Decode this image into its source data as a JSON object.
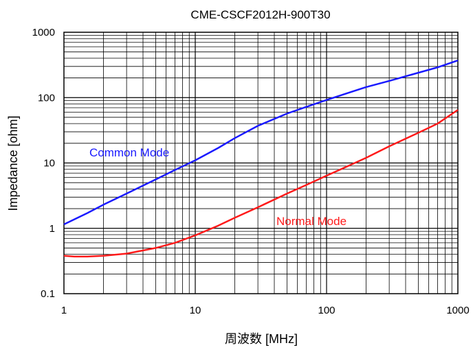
{
  "chart_data": {
    "type": "line",
    "title": "CME-CSCF2012H-900T30",
    "xlabel": "周波数 [MHz]",
    "ylabel": "Impedance [ohm]",
    "x_scale": "log",
    "y_scale": "log",
    "xlim": [
      1,
      1000
    ],
    "ylim": [
      0.1,
      1000
    ],
    "grid": true,
    "x_ticks": [
      "1",
      "10",
      "100",
      "1000"
    ],
    "y_ticks": [
      "1000",
      "100",
      "10",
      "1",
      "0.1"
    ],
    "series": [
      {
        "name": "Common Mode",
        "color": "#1a1aff",
        "x": [
          1,
          1.5,
          2,
          3,
          5,
          7,
          10,
          15,
          20,
          30,
          50,
          70,
          100,
          150,
          200,
          300,
          500,
          700,
          1000
        ],
        "y": [
          1.15,
          1.7,
          2.3,
          3.4,
          5.6,
          7.8,
          11,
          17,
          24,
          37,
          57,
          72,
          92,
          120,
          145,
          180,
          240,
          290,
          370
        ]
      },
      {
        "name": "Normal Mode",
        "color": "#ff1a1a",
        "x": [
          1,
          1.2,
          1.5,
          2,
          3,
          5,
          7,
          10,
          15,
          20,
          30,
          50,
          70,
          100,
          150,
          200,
          300,
          500,
          700,
          1000
        ],
        "y": [
          0.38,
          0.37,
          0.37,
          0.38,
          0.41,
          0.5,
          0.6,
          0.78,
          1.1,
          1.45,
          2.1,
          3.4,
          4.6,
          6.4,
          9.2,
          12,
          18,
          29,
          40,
          65
        ]
      }
    ]
  }
}
